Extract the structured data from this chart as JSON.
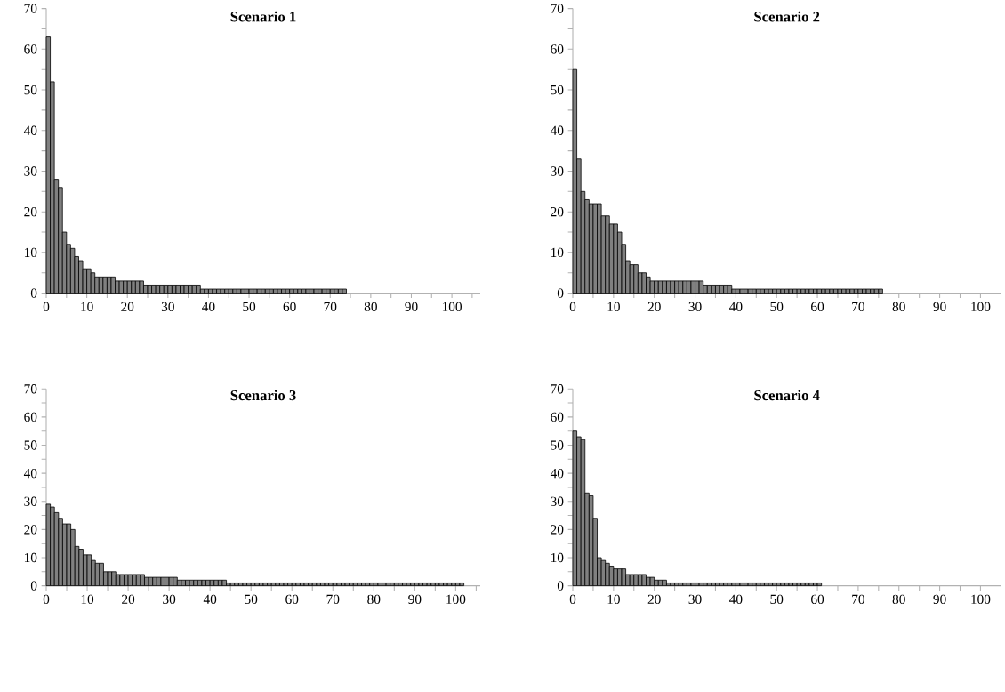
{
  "chart_data": [
    {
      "type": "histogram",
      "title": "Scenario 1",
      "color": "#808080",
      "bins": [
        0,
        1,
        2,
        3,
        4,
        5,
        6,
        7,
        8,
        9,
        10,
        11,
        12,
        13,
        14,
        15,
        16,
        17,
        18,
        19,
        20,
        21,
        22,
        23,
        24,
        25,
        26,
        27,
        28,
        29,
        30,
        31,
        32,
        33,
        34,
        35,
        36,
        37,
        38,
        39,
        40,
        41,
        42,
        43,
        44,
        45,
        46,
        47,
        48,
        49,
        50,
        51,
        52,
        53,
        54,
        55,
        56,
        57,
        58,
        59,
        60,
        61,
        62,
        63,
        64,
        65,
        66,
        67,
        68,
        69,
        70,
        71,
        72,
        73,
        74
      ],
      "values": [
        63,
        52,
        28,
        26,
        15,
        12,
        11,
        9,
        8,
        6,
        6,
        5,
        4,
        4,
        4,
        4,
        4,
        3,
        3,
        3,
        3,
        3,
        3,
        3,
        2,
        2,
        2,
        2,
        2,
        2,
        2,
        2,
        2,
        2,
        2,
        2,
        2,
        2,
        1,
        1,
        1,
        1,
        1,
        1,
        1,
        1,
        1,
        1,
        1,
        1,
        1,
        1,
        1,
        1,
        1,
        1,
        1,
        1,
        1,
        1,
        1,
        1,
        1,
        1,
        1,
        1,
        1,
        1,
        1,
        1,
        1,
        1,
        1,
        1
      ],
      "xlim": [
        0,
        107
      ],
      "ylim": [
        0,
        70
      ],
      "xticks": [
        0,
        {
          "value": 5,
          "label": null
        },
        10,
        {
          "value": 15,
          "label": null
        },
        20,
        {
          "value": 25,
          "label": null
        },
        30,
        {
          "value": 35,
          "label": null
        },
        40,
        {
          "value": 45,
          "label": null
        },
        50,
        {
          "value": 55,
          "label": null
        },
        60,
        {
          "value": 65,
          "label": null
        },
        70,
        {
          "value": 75,
          "label": null
        },
        80,
        {
          "value": 85,
          "label": null
        },
        90,
        {
          "value": 95,
          "label": null
        },
        100,
        {
          "value": 105,
          "label": null
        }
      ],
      "yticks": [
        0,
        {
          "value": 5,
          "label": null
        },
        10,
        {
          "value": 15,
          "label": null
        },
        20,
        {
          "value": 25,
          "label": null
        },
        30,
        {
          "value": 35,
          "label": null
        },
        40,
        {
          "value": 45,
          "label": null
        },
        50,
        {
          "value": 55,
          "label": null
        },
        60,
        {
          "value": 65,
          "label": null
        },
        70
      ]
    },
    {
      "type": "histogram",
      "title": "Scenario 2",
      "color": "#808080",
      "bins": [
        0,
        1,
        2,
        3,
        4,
        5,
        6,
        7,
        8,
        9,
        10,
        11,
        12,
        13,
        14,
        15,
        16,
        17,
        18,
        19,
        20,
        21,
        22,
        23,
        24,
        25,
        26,
        27,
        28,
        29,
        30,
        31,
        32,
        33,
        34,
        35,
        36,
        37,
        38,
        39,
        40,
        41,
        42,
        43,
        44,
        45,
        46,
        47,
        48,
        49,
        50,
        51,
        52,
        53,
        54,
        55,
        56,
        57,
        58,
        59,
        60,
        61,
        62,
        63,
        64,
        65,
        66,
        67,
        68,
        69,
        70,
        71,
        72,
        73,
        74,
        75,
        76
      ],
      "values": [
        55,
        33,
        25,
        23,
        22,
        22,
        22,
        19,
        19,
        17,
        17,
        15,
        12,
        8,
        7,
        7,
        5,
        5,
        4,
        3,
        3,
        3,
        3,
        3,
        3,
        3,
        3,
        3,
        3,
        3,
        3,
        3,
        2,
        2,
        2,
        2,
        2,
        2,
        2,
        1,
        1,
        1,
        1,
        1,
        1,
        1,
        1,
        1,
        1,
        1,
        1,
        1,
        1,
        1,
        1,
        1,
        1,
        1,
        1,
        1,
        1,
        1,
        1,
        1,
        1,
        1,
        1,
        1,
        1,
        1,
        1,
        1,
        1,
        1,
        1,
        1
      ],
      "xlim": [
        0,
        105
      ],
      "ylim": [
        0,
        70
      ],
      "xticks": [
        0,
        {
          "value": 5,
          "label": null
        },
        10,
        {
          "value": 15,
          "label": null
        },
        20,
        {
          "value": 25,
          "label": null
        },
        30,
        {
          "value": 35,
          "label": null
        },
        40,
        {
          "value": 45,
          "label": null
        },
        50,
        {
          "value": 55,
          "label": null
        },
        60,
        {
          "value": 65,
          "label": null
        },
        70,
        {
          "value": 75,
          "label": null
        },
        80,
        {
          "value": 85,
          "label": null
        },
        90,
        {
          "value": 95,
          "label": null
        },
        100
      ],
      "yticks": [
        0,
        {
          "value": 5,
          "label": null
        },
        10,
        {
          "value": 15,
          "label": null
        },
        20,
        {
          "value": 25,
          "label": null
        },
        30,
        {
          "value": 35,
          "label": null
        },
        40,
        {
          "value": 45,
          "label": null
        },
        50,
        {
          "value": 55,
          "label": null
        },
        60,
        {
          "value": 65,
          "label": null
        },
        70
      ]
    },
    {
      "type": "histogram",
      "title": "Scenario 3",
      "color": "#808080",
      "bins": [
        0,
        1,
        2,
        3,
        4,
        5,
        6,
        7,
        8,
        9,
        10,
        11,
        12,
        13,
        14,
        15,
        16,
        17,
        18,
        19,
        20,
        21,
        22,
        23,
        24,
        25,
        26,
        27,
        28,
        29,
        30,
        31,
        32,
        33,
        34,
        35,
        36,
        37,
        38,
        39,
        40,
        41,
        42,
        43,
        44,
        45,
        46,
        47,
        48,
        49,
        50,
        51,
        52,
        53,
        54,
        55,
        56,
        57,
        58,
        59,
        60,
        61,
        62,
        63,
        64,
        65,
        66,
        67,
        68,
        69,
        70,
        71,
        72,
        73,
        74,
        75,
        76,
        77,
        78,
        79,
        80,
        81,
        82,
        83,
        84,
        85,
        86,
        87,
        88,
        89,
        90,
        91,
        92,
        93,
        94,
        95,
        96,
        97,
        98,
        99,
        100,
        101,
        102
      ],
      "values": [
        29,
        28,
        26,
        24,
        22,
        22,
        20,
        14,
        13,
        11,
        11,
        9,
        8,
        8,
        5,
        5,
        5,
        4,
        4,
        4,
        4,
        4,
        4,
        4,
        3,
        3,
        3,
        3,
        3,
        3,
        3,
        3,
        2,
        2,
        2,
        2,
        2,
        2,
        2,
        2,
        2,
        2,
        2,
        2,
        1,
        1,
        1,
        1,
        1,
        1,
        1,
        1,
        1,
        1,
        1,
        1,
        1,
        1,
        1,
        1,
        1,
        1,
        1,
        1,
        1,
        1,
        1,
        1,
        1,
        1,
        1,
        1,
        1,
        1,
        1,
        1,
        1,
        1,
        1,
        1,
        1,
        1,
        1,
        1,
        1,
        1,
        1,
        1,
        1,
        1,
        1,
        1,
        1,
        1,
        1,
        1,
        1,
        1,
        1,
        1,
        1,
        1
      ],
      "xlim": [
        0,
        106
      ],
      "ylim": [
        0,
        70
      ],
      "xticks": [
        0,
        {
          "value": 5,
          "label": null
        },
        10,
        {
          "value": 15,
          "label": null
        },
        20,
        {
          "value": 25,
          "label": null
        },
        30,
        {
          "value": 35,
          "label": null
        },
        40,
        {
          "value": 45,
          "label": null
        },
        50,
        {
          "value": 55,
          "label": null
        },
        60,
        {
          "value": 65,
          "label": null
        },
        70,
        {
          "value": 75,
          "label": null
        },
        80,
        {
          "value": 85,
          "label": null
        },
        90,
        {
          "value": 95,
          "label": null
        },
        100,
        {
          "value": 105,
          "label": null
        }
      ],
      "yticks": [
        0,
        {
          "value": 5,
          "label": null
        },
        10,
        {
          "value": 15,
          "label": null
        },
        20,
        {
          "value": 25,
          "label": null
        },
        30,
        {
          "value": 35,
          "label": null
        },
        40,
        {
          "value": 45,
          "label": null
        },
        50,
        {
          "value": 55,
          "label": null
        },
        60,
        {
          "value": 65,
          "label": null
        },
        70
      ]
    },
    {
      "type": "histogram",
      "title": "Scenario 4",
      "color": "#808080",
      "bins": [
        0,
        1,
        2,
        3,
        4,
        5,
        6,
        7,
        8,
        9,
        10,
        11,
        12,
        13,
        14,
        15,
        16,
        17,
        18,
        19,
        20,
        21,
        22,
        23,
        24,
        25,
        26,
        27,
        28,
        29,
        30,
        31,
        32,
        33,
        34,
        35,
        36,
        37,
        38,
        39,
        40,
        41,
        42,
        43,
        44,
        45,
        46,
        47,
        48,
        49,
        50,
        51,
        52,
        53,
        54,
        55,
        56,
        57,
        58,
        59,
        60,
        61
      ],
      "values": [
        55,
        53,
        52,
        33,
        32,
        24,
        10,
        9,
        8,
        7,
        6,
        6,
        6,
        4,
        4,
        4,
        4,
        4,
        3,
        3,
        2,
        2,
        2,
        1,
        1,
        1,
        1,
        1,
        1,
        1,
        1,
        1,
        1,
        1,
        1,
        1,
        1,
        1,
        1,
        1,
        1,
        1,
        1,
        1,
        1,
        1,
        1,
        1,
        1,
        1,
        1,
        1,
        1,
        1,
        1,
        1,
        1,
        1,
        1,
        1,
        1
      ],
      "xlim": [
        0,
        105
      ],
      "ylim": [
        0,
        70
      ],
      "xticks": [
        0,
        {
          "value": 5,
          "label": null
        },
        10,
        {
          "value": 15,
          "label": null
        },
        20,
        {
          "value": 25,
          "label": null
        },
        30,
        {
          "value": 35,
          "label": null
        },
        40,
        {
          "value": 45,
          "label": null
        },
        50,
        {
          "value": 55,
          "label": null
        },
        60,
        {
          "value": 65,
          "label": null
        },
        70,
        {
          "value": 75,
          "label": null
        },
        80,
        {
          "value": 85,
          "label": null
        },
        90,
        {
          "value": 95,
          "label": null
        },
        100
      ],
      "yticks": [
        0,
        {
          "value": 5,
          "label": null
        },
        10,
        {
          "value": 15,
          "label": null
        },
        20,
        {
          "value": 25,
          "label": null
        },
        30,
        {
          "value": 35,
          "label": null
        },
        40,
        {
          "value": 45,
          "label": null
        },
        50,
        {
          "value": 55,
          "label": null
        },
        60,
        {
          "value": 65,
          "label": null
        },
        70
      ]
    }
  ]
}
